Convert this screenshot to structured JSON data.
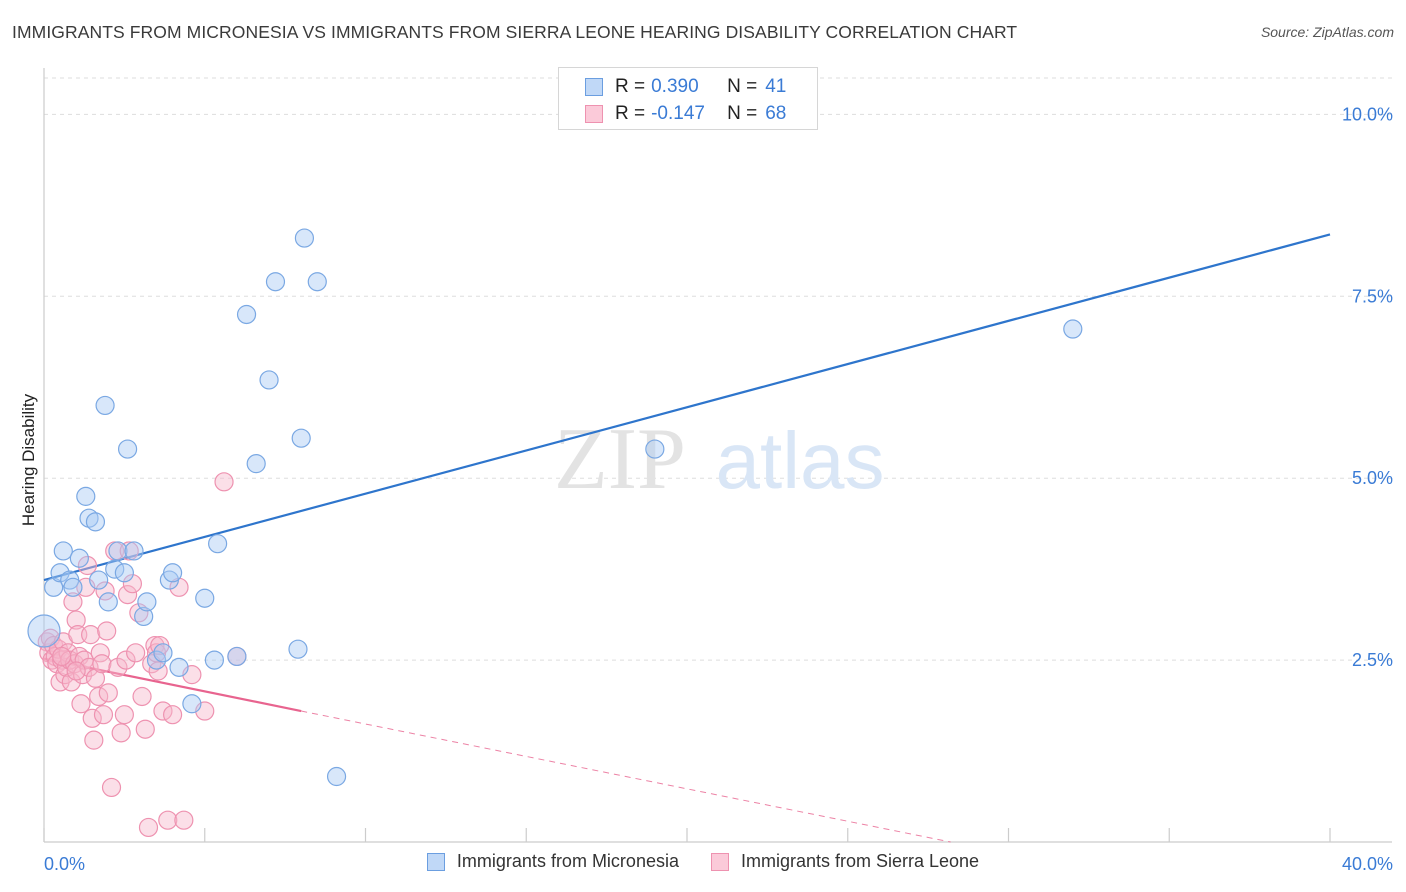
{
  "title": "IMMIGRANTS FROM MICRONESIA VS IMMIGRANTS FROM SIERRA LEONE HEARING DISABILITY CORRELATION CHART",
  "source": "Source: ZipAtlas.com",
  "watermark": {
    "zip": "ZIP",
    "atlas": "atlas"
  },
  "legend": {
    "rows": [
      {
        "r_label": "R =",
        "r_value": "0.390",
        "n_label": "N =",
        "n_value": "41"
      },
      {
        "r_label": "R =",
        "r_value": "-0.147",
        "n_label": "N =",
        "n_value": "68"
      }
    ]
  },
  "colors": {
    "micronesia_fill": "#a9c9f3",
    "micronesia_stroke": "#7aa8e3",
    "micronesia_line": "#2e75cc",
    "sierra_fill": "#f7b8cc",
    "sierra_stroke": "#ee92b0",
    "sierra_line": "#e8648f",
    "axis_text": "#3a7bd5",
    "grid": "#dddddd"
  },
  "chart_data": {
    "type": "scatter",
    "title": "IMMIGRANTS FROM MICRONESIA VS IMMIGRANTS FROM SIERRA LEONE HEARING DISABILITY CORRELATION CHART",
    "xlabel": "",
    "ylabel": "Hearing Disability",
    "xlim": [
      0,
      40
    ],
    "ylim": [
      0,
      10.5
    ],
    "x_tick_labels": [
      "0.0%",
      "40.0%"
    ],
    "y_ticks": [
      2.5,
      5.0,
      7.5,
      10.0
    ],
    "y_tick_labels": [
      "2.5%",
      "5.0%",
      "7.5%",
      "10.0%"
    ],
    "grid": true,
    "legend_position": "bottom",
    "series": [
      {
        "name": "Immigrants from Micronesia",
        "color": "#a9c9f3",
        "points": [
          [
            0.0,
            2.9
          ],
          [
            0.3,
            3.5
          ],
          [
            0.5,
            3.7
          ],
          [
            0.6,
            4.0
          ],
          [
            0.8,
            3.6
          ],
          [
            0.9,
            3.5
          ],
          [
            1.1,
            3.9
          ],
          [
            1.3,
            4.75
          ],
          [
            1.4,
            4.45
          ],
          [
            1.6,
            4.4
          ],
          [
            1.7,
            3.6
          ],
          [
            1.9,
            6.0
          ],
          [
            2.0,
            3.3
          ],
          [
            2.2,
            3.75
          ],
          [
            2.3,
            4.0
          ],
          [
            2.5,
            3.7
          ],
          [
            2.6,
            5.4
          ],
          [
            2.8,
            4.0
          ],
          [
            3.1,
            3.1
          ],
          [
            3.2,
            3.3
          ],
          [
            3.5,
            2.5
          ],
          [
            3.7,
            2.6
          ],
          [
            3.9,
            3.6
          ],
          [
            4.0,
            3.7
          ],
          [
            4.2,
            2.4
          ],
          [
            4.6,
            1.9
          ],
          [
            5.0,
            3.35
          ],
          [
            5.3,
            2.5
          ],
          [
            5.4,
            4.1
          ],
          [
            6.0,
            2.55
          ],
          [
            6.3,
            7.25
          ],
          [
            6.6,
            5.2
          ],
          [
            7.0,
            6.35
          ],
          [
            7.2,
            7.7
          ],
          [
            7.9,
            2.65
          ],
          [
            8.0,
            5.55
          ],
          [
            8.1,
            8.3
          ],
          [
            8.5,
            7.7
          ],
          [
            9.1,
            0.9
          ],
          [
            19.0,
            5.4
          ],
          [
            32.0,
            7.05
          ]
        ]
      },
      {
        "name": "Immigrants from Sierra Leone",
        "color": "#f7b8cc",
        "points": [
          [
            0.1,
            2.75
          ],
          [
            0.15,
            2.6
          ],
          [
            0.2,
            2.8
          ],
          [
            0.25,
            2.5
          ],
          [
            0.3,
            2.7
          ],
          [
            0.35,
            2.55
          ],
          [
            0.4,
            2.45
          ],
          [
            0.45,
            2.65
          ],
          [
            0.5,
            2.2
          ],
          [
            0.55,
            2.5
          ],
          [
            0.6,
            2.75
          ],
          [
            0.65,
            2.3
          ],
          [
            0.7,
            2.4
          ],
          [
            0.75,
            2.6
          ],
          [
            0.8,
            2.5
          ],
          [
            0.85,
            2.2
          ],
          [
            0.9,
            3.3
          ],
          [
            0.95,
            2.45
          ],
          [
            1.0,
            3.05
          ],
          [
            1.05,
            2.85
          ],
          [
            1.1,
            2.55
          ],
          [
            1.15,
            1.9
          ],
          [
            1.2,
            2.3
          ],
          [
            1.25,
            2.5
          ],
          [
            1.3,
            3.5
          ],
          [
            1.35,
            3.8
          ],
          [
            1.4,
            2.4
          ],
          [
            1.45,
            2.85
          ],
          [
            1.5,
            1.7
          ],
          [
            1.55,
            1.4
          ],
          [
            1.6,
            2.25
          ],
          [
            1.7,
            2.0
          ],
          [
            1.75,
            2.6
          ],
          [
            1.8,
            2.45
          ],
          [
            1.85,
            1.75
          ],
          [
            1.9,
            3.45
          ],
          [
            1.95,
            2.9
          ],
          [
            2.0,
            2.05
          ],
          [
            2.1,
            0.75
          ],
          [
            2.2,
            4.0
          ],
          [
            2.3,
            2.4
          ],
          [
            2.4,
            1.5
          ],
          [
            2.5,
            1.75
          ],
          [
            2.55,
            2.5
          ],
          [
            2.6,
            3.4
          ],
          [
            2.65,
            4.0
          ],
          [
            2.75,
            3.55
          ],
          [
            2.85,
            2.6
          ],
          [
            2.95,
            3.15
          ],
          [
            3.05,
            2.0
          ],
          [
            3.15,
            1.55
          ],
          [
            3.25,
            0.2
          ],
          [
            3.35,
            2.45
          ],
          [
            3.45,
            2.7
          ],
          [
            3.5,
            2.6
          ],
          [
            3.55,
            2.35
          ],
          [
            3.6,
            2.7
          ],
          [
            3.7,
            1.8
          ],
          [
            3.85,
            0.3
          ],
          [
            4.0,
            1.75
          ],
          [
            4.2,
            3.5
          ],
          [
            4.35,
            0.3
          ],
          [
            4.6,
            2.3
          ],
          [
            5.0,
            1.8
          ],
          [
            5.6,
            4.95
          ],
          [
            6.0,
            2.55
          ],
          [
            1.0,
            2.35
          ],
          [
            0.55,
            2.55
          ]
        ]
      }
    ],
    "trend_lines": [
      {
        "series": "Immigrants from Micronesia",
        "from": [
          0,
          3.6
        ],
        "to": [
          40,
          8.35
        ]
      },
      {
        "series": "Immigrants from Sierra Leone",
        "from": [
          0,
          2.52
        ],
        "to": [
          8.0,
          1.8
        ],
        "dashed_to": [
          28.2,
          0.0
        ]
      }
    ]
  }
}
